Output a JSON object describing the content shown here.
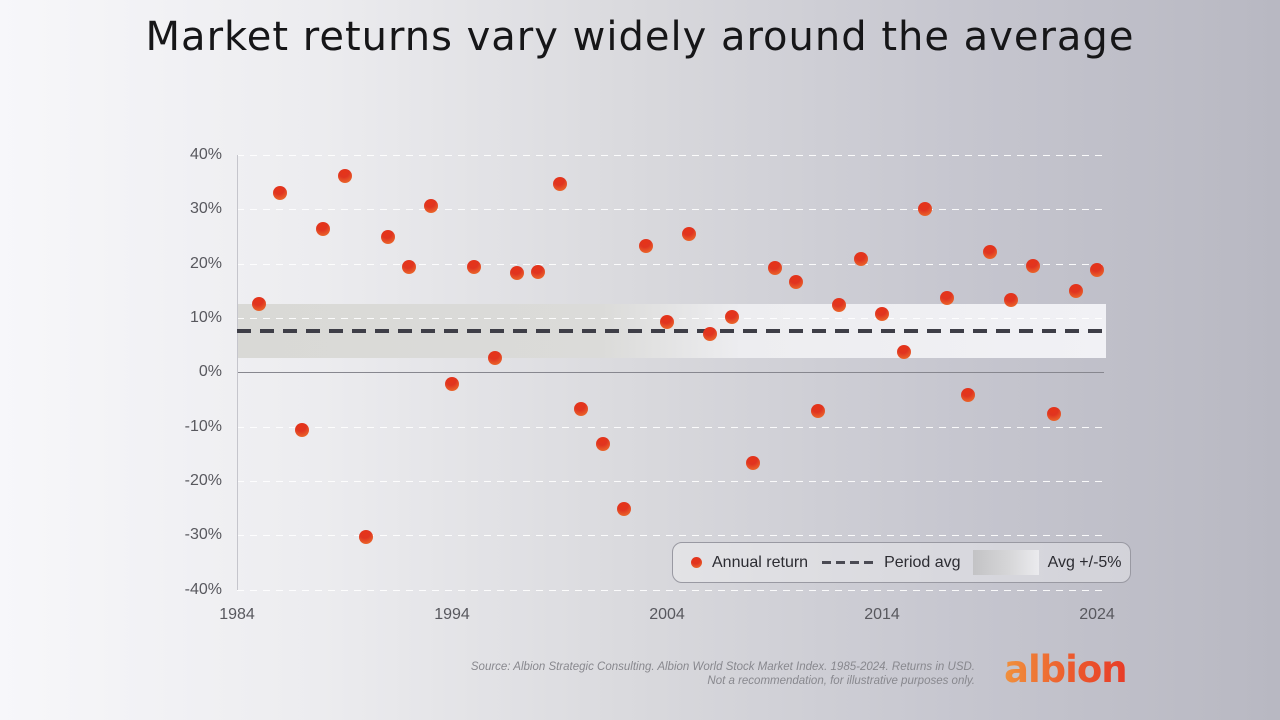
{
  "slide": {
    "title": "Market returns vary widely around the average"
  },
  "chart_data": {
    "type": "scatter",
    "title": "Market returns vary widely around the average",
    "x": [
      1985,
      1986,
      1987,
      1988,
      1989,
      1990,
      1991,
      1992,
      1993,
      1994,
      1995,
      1996,
      1997,
      1998,
      1999,
      2000,
      2001,
      2002,
      2003,
      2004,
      2005,
      2006,
      2007,
      2008,
      2009,
      2010,
      2011,
      2012,
      2013,
      2014,
      2015,
      2016,
      2017,
      2018,
      2019,
      2020,
      2021,
      2022,
      2023,
      2024
    ],
    "series": [
      {
        "name": "Annual return",
        "values": [
          12.5,
          33.0,
          -10.7,
          26.4,
          36.2,
          -30.3,
          24.9,
          19.4,
          30.7,
          -2.1,
          19.4,
          2.7,
          18.3,
          18.4,
          34.7,
          -6.8,
          -13.3,
          -25.2,
          23.3,
          9.2,
          25.5,
          7.1,
          10.2,
          -16.7,
          19.2,
          16.6,
          -7.1,
          12.3,
          20.8,
          10.8,
          3.8,
          30.0,
          13.6,
          -4.1,
          22.1,
          13.3,
          19.5,
          -7.7,
          15.0,
          18.8
        ]
      }
    ],
    "period_avg_pct": 7.6,
    "band_pct": {
      "low": 2.6,
      "high": 12.6
    },
    "ylim": [
      -40,
      40
    ],
    "yticks": [
      40,
      30,
      20,
      10,
      0,
      -10,
      -20,
      -30,
      -40
    ],
    "ytick_suffix": "%",
    "xticks": [
      1984,
      1994,
      2004,
      2014,
      2024
    ],
    "x_axis": {
      "min": 1984,
      "max": 2024
    },
    "grid": "horizontal-dashed-white",
    "legend": {
      "position": "bottom-right",
      "annual_return_label": "Annual return",
      "period_avg_label": "Period avg",
      "band_label": "Avg +/-5%"
    }
  },
  "footer": {
    "source_line1": "Source: Albion Strategic Consulting. Albion World Stock Market Index. 1985-2024. Returns in USD.",
    "source_line2": "Not a recommendation, for illustrative purposes only.",
    "logo_text": "albion"
  },
  "colors": {
    "dot_red": "#e03420",
    "dot_orange": "#ee7c30",
    "avg_line": "#3e3e47",
    "band_gray": "#d9d9d6",
    "band_light": "#f1f1f5",
    "background_left": "#f7f7fa",
    "background_right": "#b8b8c2",
    "axis_text": "#58585e",
    "logo_orange": "#f0913d",
    "logo_red": "#e73c28"
  }
}
